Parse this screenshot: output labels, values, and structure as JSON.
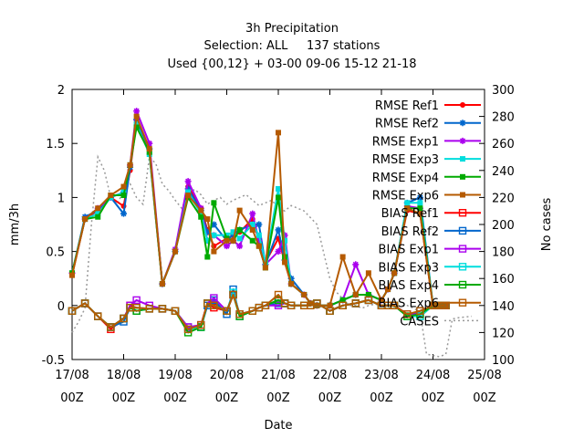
{
  "chart_data": {
    "type": "line",
    "title_lines": [
      "3h Precipitation",
      "Selection: ALL     137 stations",
      "Used {00,12} + 03-00 09-06 15-12 21-18"
    ],
    "xlabel": "Date",
    "ylabel": "mm/3h",
    "y2label": "No cases",
    "ylim": [
      -0.5,
      2
    ],
    "y2lim": [
      100,
      300
    ],
    "xlim": [
      0,
      8
    ],
    "yticks": [
      "-0.5",
      "0",
      "0.5",
      "1",
      "1.5",
      "2"
    ],
    "y2ticks": [
      "100",
      "120",
      "140",
      "160",
      "180",
      "200",
      "220",
      "240",
      "260",
      "280",
      "300"
    ],
    "xticks": [
      {
        "top": "17/08",
        "bottom": "00Z"
      },
      {
        "top": "18/08",
        "bottom": "00Z"
      },
      {
        "top": "19/08",
        "bottom": "00Z"
      },
      {
        "top": "20/08",
        "bottom": "00Z"
      },
      {
        "top": "21/08",
        "bottom": "00Z"
      },
      {
        "top": "22/08",
        "bottom": "00Z"
      },
      {
        "top": "23/08",
        "bottom": "00Z"
      },
      {
        "top": "24/08",
        "bottom": "00Z"
      },
      {
        "top": "25/08",
        "bottom": "00Z"
      }
    ],
    "x_days_from_17_08_00Z": [
      0.0,
      0.25,
      0.5,
      0.75,
      1.0,
      1.125,
      1.25,
      1.5,
      1.75,
      2.0,
      2.25,
      2.5,
      2.625,
      2.75,
      3.0,
      3.125,
      3.25,
      3.5,
      3.625,
      3.75,
      4.0,
      4.125,
      4.25,
      4.5,
      4.625,
      4.75,
      5.0,
      5.25,
      5.5,
      5.75,
      6.0,
      6.125,
      6.25,
      6.5,
      6.75,
      7.0,
      7.125,
      7.25
    ],
    "legend_position": "top-right",
    "series": [
      {
        "name": "RMSE Ref1",
        "color": "#ff0000",
        "marker": "filled-circle",
        "values": [
          0.28,
          0.8,
          0.88,
          1.0,
          0.92,
          1.25,
          1.7,
          1.4,
          0.2,
          0.5,
          1.1,
          0.9,
          0.7,
          0.55,
          0.62,
          0.65,
          0.68,
          0.8,
          0.6,
          0.4,
          0.62,
          0.4,
          0.2,
          0.1,
          0.02,
          0.0,
          0.0,
          0.05,
          0.1,
          0.1,
          0.05,
          0.15,
          0.3,
          0.88,
          0.85,
          0.0,
          0.0,
          0.0
        ]
      },
      {
        "name": "RMSE Ref2",
        "color": "#0066cc",
        "marker": "star",
        "values": [
          0.3,
          0.82,
          0.88,
          1.0,
          0.85,
          1.28,
          1.72,
          1.45,
          0.2,
          0.5,
          1.08,
          0.88,
          0.68,
          0.75,
          0.6,
          0.66,
          0.7,
          0.75,
          0.75,
          0.38,
          0.7,
          0.42,
          0.25,
          0.1,
          0.02,
          0.0,
          0.0,
          0.05,
          0.1,
          0.1,
          0.05,
          0.15,
          0.3,
          0.95,
          1.0,
          0.0,
          0.0,
          0.0
        ]
      },
      {
        "name": "RMSE Exp1",
        "color": "#aa00ee",
        "marker": "star",
        "values": [
          0.3,
          0.8,
          0.9,
          1.0,
          1.05,
          1.3,
          1.8,
          1.5,
          0.2,
          0.52,
          1.15,
          0.9,
          0.6,
          0.65,
          0.55,
          0.6,
          0.55,
          0.85,
          0.6,
          0.38,
          0.5,
          0.65,
          0.2,
          0.1,
          0.02,
          0.0,
          0.0,
          0.05,
          0.38,
          0.1,
          0.05,
          0.15,
          0.3,
          0.92,
          0.9,
          0.0,
          0.0,
          0.0
        ]
      },
      {
        "name": "RMSE Exp3",
        "color": "#00dddd",
        "marker": "filled-square",
        "values": [
          0.3,
          0.8,
          0.85,
          1.0,
          1.05,
          1.3,
          1.68,
          1.4,
          0.2,
          0.5,
          1.05,
          0.85,
          0.6,
          0.65,
          0.65,
          0.68,
          0.62,
          0.75,
          0.65,
          0.4,
          1.08,
          0.6,
          0.2,
          0.1,
          0.02,
          0.0,
          0.0,
          0.05,
          0.1,
          0.1,
          0.05,
          0.15,
          0.3,
          0.95,
          0.95,
          0.0,
          0.0,
          0.0
        ]
      },
      {
        "name": "RMSE Exp4",
        "color": "#00aa00",
        "marker": "filled-square",
        "values": [
          0.3,
          0.8,
          0.82,
          1.02,
          1.02,
          1.3,
          1.65,
          1.42,
          0.2,
          0.5,
          1.0,
          0.82,
          0.45,
          0.95,
          0.62,
          0.6,
          0.7,
          0.6,
          0.55,
          0.35,
          1.0,
          0.45,
          0.2,
          0.1,
          0.02,
          0.0,
          0.0,
          0.05,
          0.1,
          0.1,
          0.05,
          0.15,
          0.3,
          0.9,
          0.9,
          0.0,
          0.0,
          0.0
        ]
      },
      {
        "name": "RMSE Exp6",
        "color": "#b55a00",
        "marker": "filled-square",
        "values": [
          0.28,
          0.8,
          0.9,
          1.02,
          1.1,
          1.3,
          1.75,
          1.45,
          0.2,
          0.5,
          1.02,
          0.88,
          0.8,
          0.5,
          0.6,
          0.6,
          0.88,
          0.7,
          0.55,
          0.35,
          1.6,
          0.4,
          0.2,
          0.1,
          0.02,
          0.0,
          0.0,
          0.45,
          0.1,
          0.3,
          0.05,
          0.15,
          0.3,
          0.9,
          0.85,
          0.0,
          0.0,
          0.0
        ]
      },
      {
        "name": "BIAS Ref1",
        "color": "#ff0000",
        "marker": "open-square",
        "values": [
          -0.05,
          0.02,
          -0.1,
          -0.22,
          -0.12,
          0.0,
          -0.02,
          -0.03,
          -0.03,
          -0.05,
          -0.22,
          -0.18,
          0.02,
          -0.02,
          -0.05,
          0.1,
          -0.08,
          -0.05,
          -0.02,
          0.0,
          0.05,
          0.02,
          0.0,
          0.0,
          0.0,
          0.02,
          -0.05,
          0.0,
          0.02,
          0.05,
          0.0,
          0.0,
          0.0,
          -0.08,
          -0.1,
          0.0,
          0.0,
          0.0
        ]
      },
      {
        "name": "BIAS Ref2",
        "color": "#0066cc",
        "marker": "open-square",
        "values": [
          -0.05,
          0.02,
          -0.1,
          -0.2,
          -0.15,
          -0.02,
          -0.05,
          -0.03,
          -0.03,
          -0.05,
          -0.2,
          -0.2,
          0.0,
          0.05,
          -0.08,
          0.15,
          -0.1,
          -0.05,
          -0.02,
          0.0,
          0.02,
          0.02,
          0.0,
          0.0,
          0.0,
          0.02,
          -0.05,
          0.0,
          0.02,
          0.05,
          0.0,
          0.0,
          0.0,
          -0.1,
          -0.05,
          0.0,
          0.0,
          0.0
        ]
      },
      {
        "name": "BIAS Exp1",
        "color": "#aa00ee",
        "marker": "open-square",
        "values": [
          -0.05,
          0.02,
          -0.1,
          -0.2,
          -0.12,
          0.0,
          0.05,
          0.0,
          -0.03,
          -0.05,
          -0.2,
          -0.18,
          0.02,
          0.07,
          -0.05,
          0.1,
          -0.08,
          -0.05,
          -0.02,
          0.0,
          0.0,
          0.02,
          0.0,
          0.0,
          0.0,
          0.02,
          -0.05,
          0.0,
          0.02,
          0.05,
          0.0,
          0.0,
          0.0,
          -0.08,
          -0.08,
          0.0,
          0.0,
          0.0
        ]
      },
      {
        "name": "BIAS Exp3",
        "color": "#00dddd",
        "marker": "open-square",
        "values": [
          -0.05,
          0.02,
          -0.1,
          -0.2,
          -0.12,
          -0.02,
          -0.02,
          -0.03,
          -0.03,
          -0.05,
          -0.22,
          -0.2,
          0.02,
          0.0,
          -0.05,
          0.12,
          -0.08,
          -0.05,
          -0.02,
          0.0,
          0.05,
          0.02,
          0.0,
          0.0,
          0.0,
          0.02,
          -0.05,
          0.0,
          0.02,
          0.05,
          0.0,
          0.0,
          0.0,
          -0.1,
          -0.1,
          0.0,
          0.0,
          0.0
        ]
      },
      {
        "name": "BIAS Exp4",
        "color": "#00aa00",
        "marker": "open-square",
        "values": [
          -0.05,
          0.02,
          -0.1,
          -0.2,
          -0.12,
          -0.02,
          -0.05,
          -0.03,
          -0.03,
          -0.05,
          -0.25,
          -0.2,
          0.02,
          0.0,
          -0.05,
          0.1,
          -0.1,
          -0.05,
          -0.02,
          0.0,
          0.05,
          0.02,
          0.0,
          0.0,
          0.0,
          0.02,
          -0.05,
          0.0,
          0.02,
          0.05,
          0.0,
          0.0,
          0.0,
          -0.1,
          -0.08,
          0.0,
          0.0,
          0.0
        ]
      },
      {
        "name": "BIAS Exp6",
        "color": "#b55a00",
        "marker": "open-square",
        "values": [
          -0.05,
          0.02,
          -0.1,
          -0.2,
          -0.12,
          -0.02,
          -0.02,
          -0.03,
          -0.03,
          -0.05,
          -0.22,
          -0.18,
          0.02,
          0.0,
          -0.05,
          0.1,
          -0.08,
          -0.05,
          -0.02,
          0.0,
          0.1,
          0.02,
          0.0,
          0.0,
          0.0,
          0.02,
          -0.05,
          0.0,
          0.02,
          0.05,
          0.0,
          0.0,
          0.0,
          -0.08,
          -0.05,
          0.0,
          0.0,
          0.0
        ]
      }
    ],
    "cases": {
      "name": "CASES",
      "color": "#999999",
      "axis": "y2",
      "style": "dotted",
      "x": [
        0.0,
        0.125,
        0.25,
        0.375,
        0.5,
        0.625,
        0.75,
        0.875,
        1.0,
        1.125,
        1.25,
        1.375,
        1.5,
        1.625,
        1.75,
        1.875,
        2.0,
        2.125,
        2.25,
        2.375,
        2.5,
        2.625,
        2.75,
        2.875,
        3.0,
        3.125,
        3.25,
        3.375,
        3.5,
        3.625,
        3.75,
        3.875,
        4.0,
        4.125,
        4.25,
        4.375,
        4.5,
        4.625,
        4.75,
        4.875,
        5.0,
        5.125,
        5.25,
        5.375,
        5.5,
        5.625,
        5.75,
        5.875,
        6.0,
        6.125,
        6.25,
        6.375,
        6.5,
        6.625,
        6.75,
        6.875,
        7.0,
        7.125,
        7.25,
        7.375,
        7.5,
        7.75
      ],
      "values": [
        120,
        128,
        138,
        200,
        250,
        240,
        220,
        215,
        225,
        230,
        220,
        215,
        250,
        245,
        230,
        225,
        218,
        212,
        222,
        226,
        222,
        215,
        218,
        220,
        215,
        218,
        220,
        222,
        218,
        214,
        216,
        218,
        212,
        210,
        214,
        212,
        210,
        205,
        200,
        180,
        160,
        150,
        145,
        140,
        140,
        138,
        140,
        141,
        140,
        138,
        139,
        140,
        140,
        138,
        135,
        104,
        103,
        102,
        104,
        130,
        131,
        132
      ]
    }
  }
}
